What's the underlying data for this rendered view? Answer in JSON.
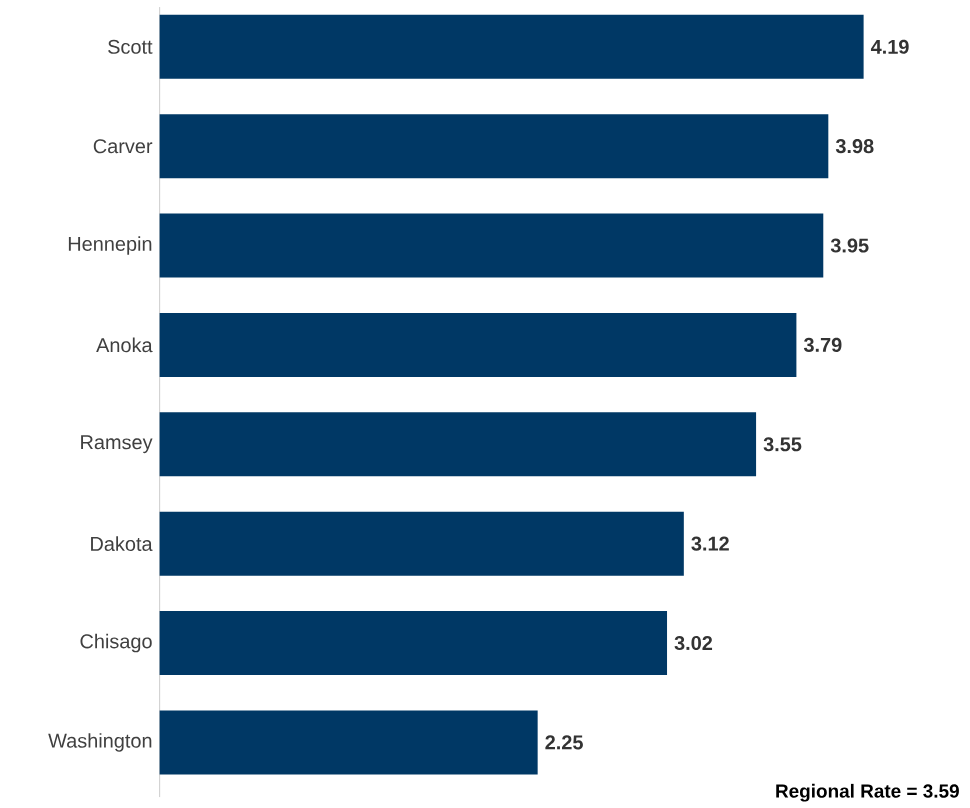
{
  "chart_data": {
    "type": "bar",
    "orientation": "horizontal",
    "categories": [
      "Scott",
      "Carver",
      "Hennepin",
      "Anoka",
      "Ramsey",
      "Dakota",
      "Chisago",
      "Washington"
    ],
    "values": [
      4.19,
      3.98,
      3.95,
      3.79,
      3.55,
      3.12,
      3.02,
      2.25
    ],
    "color": "#003865",
    "data_labels": true,
    "annotations": [
      "**Regional Rate = 3.59**"
    ]
  }
}
